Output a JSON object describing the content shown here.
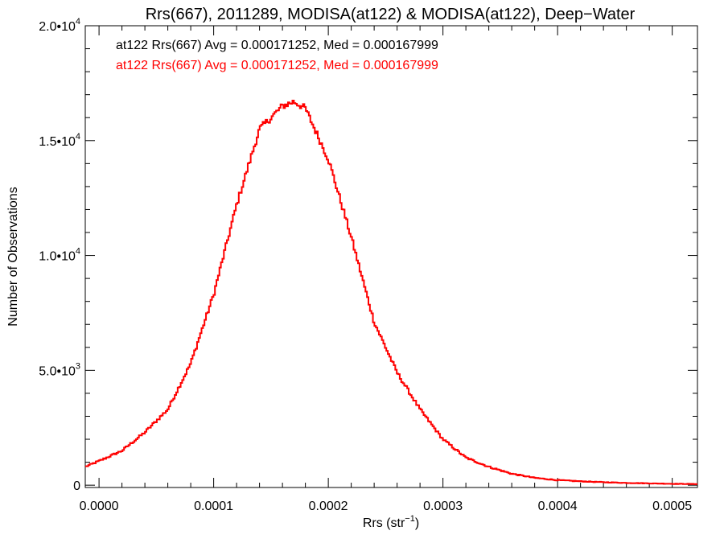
{
  "chart_data": {
    "type": "histogram",
    "title": "Rrs(667), 2011289, MODISA(at122) & MODISA(at122), Deep−Water",
    "xlabel": {
      "base": "Rrs (str",
      "sup": "−1",
      "tail": ")"
    },
    "ylabel": "Number of Observations",
    "xlim": [
      -1.2e-05,
      0.000522
    ],
    "ylim": [
      -100,
      20000
    ],
    "x_tick_labels": [
      "0.0000",
      "0.0001",
      "0.0002",
      "0.0003",
      "0.0004",
      "0.0005"
    ],
    "x_tick_values": [
      0,
      0.0001,
      0.0002,
      0.0003,
      0.0004,
      0.0005
    ],
    "y_tick_labels": [
      {
        "base": "0",
        "sup": ""
      },
      {
        "base": "5.0•10",
        "sup": "3"
      },
      {
        "base": "1.0•10",
        "sup": "4"
      },
      {
        "base": "1.5•10",
        "sup": "4"
      },
      {
        "base": "2.0•10",
        "sup": "4"
      }
    ],
    "y_tick_values": [
      0,
      5000,
      10000,
      15000,
      20000
    ],
    "annotations": [
      {
        "text": "at122 Rrs(667) Avg = 0.000171252, Med = 0.000167999",
        "color": "#000000"
      },
      {
        "text": "at122 Rrs(667) Avg = 0.000171252, Med = 0.000167999",
        "color": "#ff0000"
      }
    ],
    "series": [
      {
        "color": "#ff0000",
        "profile": {
          "x": [
            -1.2e-05,
            0.0,
            2e-05,
            4e-05,
            6e-05,
            8e-05,
            0.0001,
            0.00012,
            0.00014,
            0.00016,
            0.00017,
            0.00018,
            0.0002,
            0.00022,
            0.00024,
            0.00026,
            0.00028,
            0.0003,
            0.00032,
            0.00034,
            0.00036,
            0.00038,
            0.0004,
            0.00042,
            0.00044,
            0.00046,
            0.00048,
            0.0005,
            0.00052
          ],
          "y": [
            800,
            1050,
            1500,
            2300,
            3300,
            5300,
            8300,
            12200,
            15500,
            16500,
            16700,
            16400,
            14200,
            10800,
            7100,
            4900,
            3300,
            2000,
            1200,
            800,
            500,
            320,
            220,
            170,
            130,
            100,
            80,
            60,
            50
          ]
        }
      }
    ]
  }
}
